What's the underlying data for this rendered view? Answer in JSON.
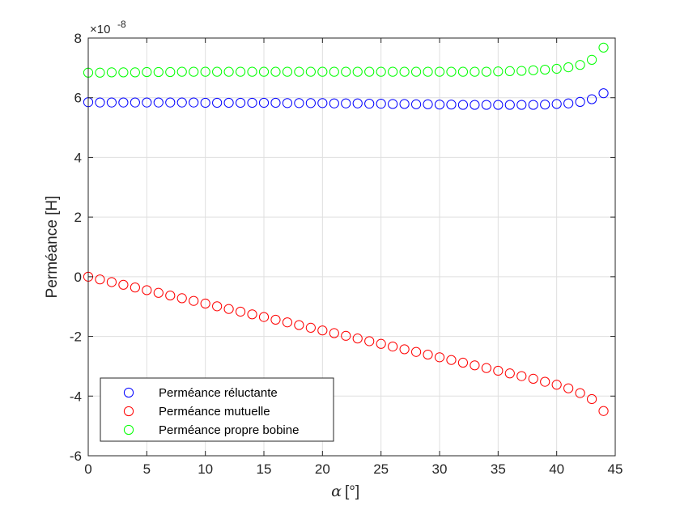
{
  "chart_data": {
    "type": "scatter",
    "xlabel": "[°]",
    "xlabel_symbol": "α",
    "ylabel": "Perméance [H]",
    "y_exponent": "-8",
    "y_exponent_prefix": "×10",
    "xlim": [
      0,
      45
    ],
    "ylim": [
      -6,
      8
    ],
    "xticks": [
      0,
      5,
      10,
      15,
      20,
      25,
      30,
      35,
      40,
      45
    ],
    "yticks": [
      -6,
      -4,
      -2,
      0,
      2,
      4,
      6,
      8
    ],
    "grid": true,
    "legend_position": "bottom-left",
    "marker": "open-circle",
    "x": [
      0,
      1,
      2,
      3,
      4,
      5,
      6,
      7,
      8,
      9,
      10,
      11,
      12,
      13,
      14,
      15,
      16,
      17,
      18,
      19,
      20,
      21,
      22,
      23,
      24,
      25,
      26,
      27,
      28,
      29,
      30,
      31,
      32,
      33,
      34,
      35,
      36,
      37,
      38,
      39,
      40,
      41,
      42,
      43,
      44
    ],
    "series": [
      {
        "name": "Perméance réluctante",
        "color": "#0000ff",
        "values": [
          5.85,
          5.84,
          5.84,
          5.84,
          5.84,
          5.84,
          5.84,
          5.84,
          5.84,
          5.84,
          5.83,
          5.83,
          5.83,
          5.83,
          5.83,
          5.83,
          5.83,
          5.82,
          5.82,
          5.82,
          5.82,
          5.81,
          5.81,
          5.81,
          5.8,
          5.8,
          5.79,
          5.79,
          5.78,
          5.78,
          5.77,
          5.77,
          5.76,
          5.76,
          5.76,
          5.76,
          5.76,
          5.76,
          5.76,
          5.77,
          5.79,
          5.81,
          5.86,
          5.95,
          6.15
        ]
      },
      {
        "name": "Perméance mutuelle",
        "color": "#ff0000",
        "values": [
          0.0,
          -0.09,
          -0.18,
          -0.27,
          -0.36,
          -0.45,
          -0.54,
          -0.63,
          -0.72,
          -0.81,
          -0.9,
          -0.99,
          -1.08,
          -1.17,
          -1.26,
          -1.35,
          -1.44,
          -1.53,
          -1.62,
          -1.71,
          -1.8,
          -1.89,
          -1.98,
          -2.07,
          -2.16,
          -2.25,
          -2.34,
          -2.43,
          -2.52,
          -2.61,
          -2.7,
          -2.79,
          -2.88,
          -2.97,
          -3.06,
          -3.15,
          -3.24,
          -3.33,
          -3.42,
          -3.52,
          -3.62,
          -3.74,
          -3.9,
          -4.1,
          -4.5
        ]
      },
      {
        "name": "Perméance propre bobine",
        "color": "#00ff00",
        "values": [
          6.84,
          6.84,
          6.85,
          6.85,
          6.85,
          6.86,
          6.86,
          6.86,
          6.87,
          6.87,
          6.87,
          6.87,
          6.87,
          6.87,
          6.87,
          6.87,
          6.87,
          6.87,
          6.87,
          6.87,
          6.87,
          6.87,
          6.87,
          6.87,
          6.87,
          6.87,
          6.87,
          6.87,
          6.87,
          6.87,
          6.87,
          6.87,
          6.87,
          6.87,
          6.87,
          6.88,
          6.89,
          6.9,
          6.92,
          6.94,
          6.97,
          7.02,
          7.1,
          7.27,
          7.68
        ]
      }
    ]
  }
}
